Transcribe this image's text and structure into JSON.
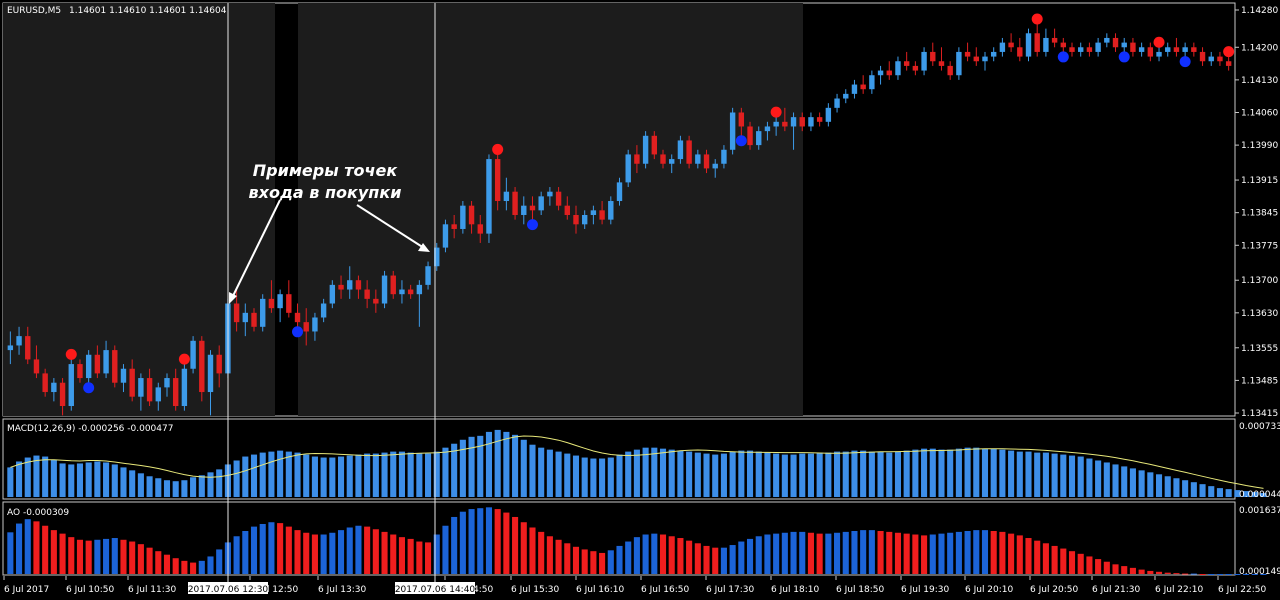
{
  "main": {
    "symbol_label": "EURUSD,M5",
    "ohlc_label": "1.14601 1.14610 1.14601 1.14604",
    "price_ticks": [
      "1.14280",
      "1.14200",
      "1.14130",
      "1.14060",
      "1.13990",
      "1.13915",
      "1.13845",
      "1.13775",
      "1.13700",
      "1.13630",
      "1.13555",
      "1.13485",
      "1.13415"
    ]
  },
  "annotation": {
    "line1": "Примеры точек",
    "line2": "входа в покупки"
  },
  "macd": {
    "label": "MACD(12,26,9) -0.000256 -0.000477",
    "top_tick": "0.000733",
    "bottom_tick": "0.000044"
  },
  "ao": {
    "label": "AO -0.000309",
    "top_tick": "0.001637",
    "bottom_tick": "0.000149"
  },
  "time_axis": {
    "labels": [
      "6 Jul 2017",
      "6 Jul 10:50",
      "6 Jul 11:30",
      "6 Jul 12:50",
      "6 Jul 13:30",
      "6 Jul 14:50",
      "6 Jul 15:30",
      "6 Jul 16:10",
      "6 Jul 16:50",
      "6 Jul 17:30",
      "6 Jul 18:10",
      "6 Jul 18:50",
      "6 Jul 19:30",
      "6 Jul 20:10",
      "6 Jul 20:50",
      "6 Jul 21:30",
      "6 Jul 22:10",
      "6 Jul 22:50"
    ],
    "cursor1": "2017.07.06 12:30",
    "cursor2": "2017.07.06 14:40"
  },
  "colors": {
    "bull": "#3d9be9",
    "bear": "#e02020",
    "macd_bar": "#3d8ee8",
    "signal_line": "#e8e87a",
    "ao_up": "#1c64d8",
    "ao_down": "#f01e1e",
    "shade": "#1c1c1c",
    "frame": "#c8c8c8",
    "marker_red": "#ff1a1a",
    "marker_blue": "#1030ff"
  },
  "chart_data": {
    "type": "candlestick",
    "symbol": "EURUSD",
    "timeframe": "M5",
    "y_range": [
      1.13415,
      1.1428
    ],
    "ohlc": [
      [
        1.1355,
        1.1359,
        1.1352,
        1.1356
      ],
      [
        1.1356,
        1.136,
        1.1354,
        1.1358
      ],
      [
        1.1358,
        1.136,
        1.1352,
        1.1353
      ],
      [
        1.1353,
        1.1356,
        1.1349,
        1.135
      ],
      [
        1.135,
        1.1351,
        1.1345,
        1.1346
      ],
      [
        1.1346,
        1.1349,
        1.1344,
        1.1348
      ],
      [
        1.1348,
        1.1349,
        1.1341,
        1.1343
      ],
      [
        1.1343,
        1.1353,
        1.1342,
        1.1352
      ],
      [
        1.1352,
        1.1353,
        1.1348,
        1.1349
      ],
      [
        1.1349,
        1.1355,
        1.1348,
        1.1354
      ],
      [
        1.1354,
        1.1356,
        1.1349,
        1.135
      ],
      [
        1.135,
        1.1357,
        1.1349,
        1.1355
      ],
      [
        1.1355,
        1.1356,
        1.1347,
        1.1348
      ],
      [
        1.1348,
        1.1352,
        1.1346,
        1.1351
      ],
      [
        1.1351,
        1.1353,
        1.1344,
        1.1345
      ],
      [
        1.1345,
        1.135,
        1.1342,
        1.1349
      ],
      [
        1.1349,
        1.1351,
        1.1343,
        1.1344
      ],
      [
        1.1344,
        1.1348,
        1.1342,
        1.1347
      ],
      [
        1.1347,
        1.135,
        1.1345,
        1.1349
      ],
      [
        1.1349,
        1.1351,
        1.1342,
        1.1343
      ],
      [
        1.1343,
        1.1352,
        1.1342,
        1.1351
      ],
      [
        1.1351,
        1.1358,
        1.135,
        1.1357
      ],
      [
        1.1357,
        1.1358,
        1.1344,
        1.1346
      ],
      [
        1.1346,
        1.1355,
        1.1341,
        1.1354
      ],
      [
        1.1354,
        1.1356,
        1.1347,
        1.135
      ],
      [
        1.135,
        1.1366,
        1.1349,
        1.1365
      ],
      [
        1.1365,
        1.1368,
        1.1359,
        1.1361
      ],
      [
        1.1361,
        1.1365,
        1.1358,
        1.1363
      ],
      [
        1.1363,
        1.1364,
        1.1359,
        1.136
      ],
      [
        1.136,
        1.1367,
        1.1359,
        1.1366
      ],
      [
        1.1366,
        1.137,
        1.1363,
        1.1364
      ],
      [
        1.1364,
        1.1368,
        1.1361,
        1.1367
      ],
      [
        1.1367,
        1.137,
        1.1362,
        1.1363
      ],
      [
        1.1363,
        1.1365,
        1.136,
        1.1361
      ],
      [
        1.1361,
        1.1364,
        1.1356,
        1.1359
      ],
      [
        1.1359,
        1.1363,
        1.1357,
        1.1362
      ],
      [
        1.1362,
        1.1366,
        1.1361,
        1.1365
      ],
      [
        1.1365,
        1.137,
        1.1364,
        1.1369
      ],
      [
        1.1369,
        1.1371,
        1.1366,
        1.1368
      ],
      [
        1.1368,
        1.1373,
        1.1366,
        1.137
      ],
      [
        1.137,
        1.1371,
        1.1366,
        1.1368
      ],
      [
        1.1368,
        1.137,
        1.1364,
        1.1366
      ],
      [
        1.1366,
        1.1368,
        1.1363,
        1.1365
      ],
      [
        1.1365,
        1.1372,
        1.1364,
        1.1371
      ],
      [
        1.1371,
        1.1372,
        1.1366,
        1.1367
      ],
      [
        1.1367,
        1.137,
        1.1365,
        1.1368
      ],
      [
        1.1368,
        1.1369,
        1.1366,
        1.1367
      ],
      [
        1.1367,
        1.137,
        1.136,
        1.1369
      ],
      [
        1.1369,
        1.1374,
        1.1368,
        1.1373
      ],
      [
        1.1373,
        1.1378,
        1.1372,
        1.1377
      ],
      [
        1.1377,
        1.1383,
        1.1376,
        1.1382
      ],
      [
        1.1382,
        1.1384,
        1.1379,
        1.1381
      ],
      [
        1.1381,
        1.1387,
        1.138,
        1.1386
      ],
      [
        1.1386,
        1.1387,
        1.138,
        1.1382
      ],
      [
        1.1382,
        1.1384,
        1.1378,
        1.138
      ],
      [
        1.138,
        1.1397,
        1.1378,
        1.1396
      ],
      [
        1.1396,
        1.1397,
        1.1385,
        1.1387
      ],
      [
        1.1387,
        1.1392,
        1.1385,
        1.1389
      ],
      [
        1.1389,
        1.139,
        1.1383,
        1.1384
      ],
      [
        1.1384,
        1.1388,
        1.1382,
        1.1386
      ],
      [
        1.1386,
        1.1388,
        1.1383,
        1.1385
      ],
      [
        1.1385,
        1.1389,
        1.1384,
        1.1388
      ],
      [
        1.1388,
        1.139,
        1.1386,
        1.1389
      ],
      [
        1.1389,
        1.139,
        1.1385,
        1.1386
      ],
      [
        1.1386,
        1.1388,
        1.1383,
        1.1384
      ],
      [
        1.1384,
        1.1386,
        1.138,
        1.1382
      ],
      [
        1.1382,
        1.1385,
        1.1381,
        1.1384
      ],
      [
        1.1384,
        1.1386,
        1.1382,
        1.1385
      ],
      [
        1.1385,
        1.1387,
        1.1382,
        1.1383
      ],
      [
        1.1383,
        1.1388,
        1.1382,
        1.1387
      ],
      [
        1.1387,
        1.1392,
        1.1386,
        1.1391
      ],
      [
        1.1391,
        1.1398,
        1.139,
        1.1397
      ],
      [
        1.1397,
        1.1399,
        1.1393,
        1.1395
      ],
      [
        1.1395,
        1.1402,
        1.1394,
        1.1401
      ],
      [
        1.1401,
        1.1402,
        1.1396,
        1.1397
      ],
      [
        1.1397,
        1.1398,
        1.1394,
        1.1395
      ],
      [
        1.1395,
        1.1397,
        1.1393,
        1.1396
      ],
      [
        1.1396,
        1.1401,
        1.1395,
        1.14
      ],
      [
        1.14,
        1.1401,
        1.1394,
        1.1395
      ],
      [
        1.1395,
        1.1398,
        1.1394,
        1.1397
      ],
      [
        1.1397,
        1.1398,
        1.1393,
        1.1394
      ],
      [
        1.1394,
        1.1396,
        1.1392,
        1.1395
      ],
      [
        1.1395,
        1.1399,
        1.1394,
        1.1398
      ],
      [
        1.1398,
        1.1407,
        1.1397,
        1.1406
      ],
      [
        1.1406,
        1.1407,
        1.1401,
        1.1403
      ],
      [
        1.1403,
        1.1404,
        1.1398,
        1.1399
      ],
      [
        1.1399,
        1.1403,
        1.1398,
        1.1402
      ],
      [
        1.1402,
        1.1404,
        1.14,
        1.1403
      ],
      [
        1.1403,
        1.1405,
        1.1401,
        1.1404
      ],
      [
        1.1404,
        1.1407,
        1.1402,
        1.1403
      ],
      [
        1.1403,
        1.1406,
        1.1398,
        1.1405
      ],
      [
        1.1405,
        1.1406,
        1.1402,
        1.1403
      ],
      [
        1.1403,
        1.1406,
        1.1402,
        1.1405
      ],
      [
        1.1405,
        1.1406,
        1.1403,
        1.1404
      ],
      [
        1.1404,
        1.1408,
        1.1403,
        1.1407
      ],
      [
        1.1407,
        1.141,
        1.1406,
        1.1409
      ],
      [
        1.1409,
        1.1411,
        1.1408,
        1.141
      ],
      [
        1.141,
        1.1413,
        1.1409,
        1.1412
      ],
      [
        1.1412,
        1.1414,
        1.141,
        1.1411
      ],
      [
        1.1411,
        1.1415,
        1.141,
        1.1414
      ],
      [
        1.1414,
        1.1416,
        1.1412,
        1.1415
      ],
      [
        1.1415,
        1.1417,
        1.1413,
        1.1414
      ],
      [
        1.1414,
        1.1418,
        1.1413,
        1.1417
      ],
      [
        1.1417,
        1.1419,
        1.1415,
        1.1416
      ],
      [
        1.1416,
        1.1417,
        1.1414,
        1.1415
      ],
      [
        1.1415,
        1.142,
        1.1414,
        1.1419
      ],
      [
        1.1419,
        1.1421,
        1.1416,
        1.1417
      ],
      [
        1.1417,
        1.142,
        1.1415,
        1.1416
      ],
      [
        1.1416,
        1.1417,
        1.1413,
        1.1414
      ],
      [
        1.1414,
        1.142,
        1.1413,
        1.1419
      ],
      [
        1.1419,
        1.1421,
        1.1417,
        1.1418
      ],
      [
        1.1418,
        1.142,
        1.1416,
        1.1417
      ],
      [
        1.1417,
        1.1419,
        1.1415,
        1.1418
      ],
      [
        1.1418,
        1.142,
        1.1417,
        1.1419
      ],
      [
        1.1419,
        1.1422,
        1.1418,
        1.1421
      ],
      [
        1.1421,
        1.1423,
        1.1419,
        1.142
      ],
      [
        1.142,
        1.1422,
        1.1417,
        1.1418
      ],
      [
        1.1418,
        1.1424,
        1.1417,
        1.1423
      ],
      [
        1.1423,
        1.1425,
        1.1418,
        1.1419
      ],
      [
        1.1419,
        1.1424,
        1.1418,
        1.1422
      ],
      [
        1.1422,
        1.1424,
        1.142,
        1.1421
      ],
      [
        1.1421,
        1.1422,
        1.1419,
        1.142
      ],
      [
        1.142,
        1.1421,
        1.1418,
        1.1419
      ],
      [
        1.1419,
        1.1421,
        1.1418,
        1.142
      ],
      [
        1.142,
        1.1421,
        1.1418,
        1.1419
      ],
      [
        1.1419,
        1.1422,
        1.1418,
        1.1421
      ],
      [
        1.1421,
        1.1423,
        1.142,
        1.1422
      ],
      [
        1.1422,
        1.1423,
        1.1419,
        1.142
      ],
      [
        1.142,
        1.1422,
        1.1419,
        1.1421
      ],
      [
        1.1421,
        1.1422,
        1.1418,
        1.1419
      ],
      [
        1.1419,
        1.1421,
        1.1418,
        1.142
      ],
      [
        1.142,
        1.1421,
        1.1417,
        1.1418
      ],
      [
        1.1418,
        1.142,
        1.1417,
        1.1419
      ],
      [
        1.1419,
        1.1421,
        1.1418,
        1.142
      ],
      [
        1.142,
        1.1422,
        1.1418,
        1.1419
      ],
      [
        1.1419,
        1.1421,
        1.1418,
        1.142
      ],
      [
        1.142,
        1.1421,
        1.1418,
        1.1419
      ],
      [
        1.1419,
        1.142,
        1.1416,
        1.1417
      ],
      [
        1.1417,
        1.1419,
        1.1416,
        1.1418
      ],
      [
        1.1418,
        1.1419,
        1.1416,
        1.1417
      ],
      [
        1.1417,
        1.1418,
        1.1415,
        1.1416
      ]
    ],
    "markers_red_index": [
      7,
      20,
      56,
      88,
      118,
      132,
      140,
      144,
      149,
      153
    ],
    "markers_blue_index": [
      9,
      33,
      60,
      84,
      121,
      128,
      135,
      144
    ],
    "macd_values": [
      0.0003,
      0.00036,
      0.0004,
      0.00042,
      0.00041,
      0.00038,
      0.00034,
      0.00033,
      0.00034,
      0.00035,
      0.00036,
      0.00035,
      0.00033,
      0.0003,
      0.00027,
      0.00024,
      0.00021,
      0.00019,
      0.00017,
      0.00016,
      0.00017,
      0.0002,
      0.00022,
      0.00025,
      0.00028,
      0.00033,
      0.00037,
      0.00041,
      0.00043,
      0.00045,
      0.00046,
      0.00047,
      0.00046,
      0.00045,
      0.00043,
      0.00041,
      0.0004,
      0.0004,
      0.00041,
      0.00042,
      0.00043,
      0.00044,
      0.00044,
      0.00045,
      0.00046,
      0.00046,
      0.00045,
      0.00044,
      0.00044,
      0.00046,
      0.0005,
      0.00054,
      0.00058,
      0.00061,
      0.00062,
      0.00066,
      0.00068,
      0.00066,
      0.00063,
      0.00058,
      0.00053,
      0.0005,
      0.00048,
      0.00046,
      0.00044,
      0.00042,
      0.0004,
      0.00039,
      0.00039,
      0.0004,
      0.00043,
      0.00046,
      0.00048,
      0.0005,
      0.0005,
      0.00049,
      0.00048,
      0.00047,
      0.00046,
      0.00045,
      0.00044,
      0.00043,
      0.00044,
      0.00046,
      0.00047,
      0.00047,
      0.00046,
      0.00045,
      0.00044,
      0.00043,
      0.00043,
      0.00044,
      0.00044,
      0.00045,
      0.00045,
      0.00046,
      0.00046,
      0.00047,
      0.00047,
      0.00046,
      0.00046,
      0.00045,
      0.00046,
      0.00047,
      0.00048,
      0.00049,
      0.00049,
      0.00048,
      0.00048,
      0.00049,
      0.0005,
      0.0005,
      0.00049,
      0.00049,
      0.00048,
      0.00047,
      0.00046,
      0.00046,
      0.00045,
      0.00045,
      0.00044,
      0.00043,
      0.00042,
      0.00041,
      0.00039,
      0.00037,
      0.00035,
      0.00033,
      0.00031,
      0.00029,
      0.00027,
      0.00025,
      0.00023,
      0.00021,
      0.00019,
      0.00017,
      0.00015,
      0.00013,
      0.00011,
      9e-05,
      8e-05,
      7e-05,
      6e-05,
      5e-05,
      4e-05
    ],
    "ao_values": [
      0.00095,
      0.00115,
      0.00125,
      0.0012,
      0.0011,
      0.001,
      0.00092,
      0.00084,
      0.00078,
      0.00076,
      0.00078,
      0.0008,
      0.00082,
      0.00078,
      0.00074,
      0.00068,
      0.0006,
      0.00052,
      0.00044,
      0.00036,
      0.0003,
      0.00026,
      0.0003,
      0.0004,
      0.00056,
      0.00072,
      0.00086,
      0.00098,
      0.00108,
      0.00114,
      0.00118,
      0.00116,
      0.00108,
      0.001,
      0.00094,
      0.0009,
      0.0009,
      0.00094,
      0.001,
      0.00106,
      0.0011,
      0.00108,
      0.00102,
      0.00096,
      0.0009,
      0.00084,
      0.0008,
      0.00074,
      0.00072,
      0.0009,
      0.0011,
      0.0013,
      0.00142,
      0.00148,
      0.0015,
      0.00152,
      0.00148,
      0.0014,
      0.0013,
      0.00118,
      0.00106,
      0.00096,
      0.00086,
      0.00078,
      0.0007,
      0.00062,
      0.00056,
      0.00052,
      0.00048,
      0.00054,
      0.00064,
      0.00074,
      0.00084,
      0.0009,
      0.00092,
      0.0009,
      0.00086,
      0.00082,
      0.00076,
      0.0007,
      0.00064,
      0.0006,
      0.0006,
      0.00066,
      0.00074,
      0.0008,
      0.00086,
      0.0009,
      0.00092,
      0.00094,
      0.00096,
      0.00096,
      0.00094,
      0.00092,
      0.00092,
      0.00094,
      0.00096,
      0.00098,
      0.001,
      0.001,
      0.00098,
      0.00096,
      0.00094,
      0.00092,
      0.0009,
      0.00088,
      0.0009,
      0.00092,
      0.00094,
      0.00096,
      0.00098,
      0.001,
      0.001,
      0.00098,
      0.00096,
      0.00092,
      0.00088,
      0.00082,
      0.00076,
      0.0007,
      0.00064,
      0.00058,
      0.00052,
      0.00046,
      0.0004,
      0.00034,
      0.00028,
      0.00022,
      0.00018,
      0.00014,
      0.0001,
      7e-05,
      5e-05,
      3e-05,
      2e-05,
      1e-05,
      1e-05,
      0.0,
      0.0,
      0.0,
      0.0,
      0.0,
      0.0,
      0.0,
      0.0
    ]
  }
}
